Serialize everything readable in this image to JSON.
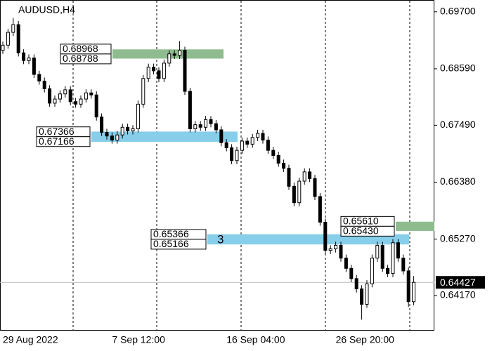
{
  "chart_data": {
    "type": "candlestick",
    "title": "AUDUSD,H4",
    "categories": [
      "29 Aug 2022",
      null,
      null,
      null,
      null,
      null,
      null,
      null,
      null,
      null,
      null,
      null,
      null,
      null,
      null,
      null,
      null,
      null,
      null,
      null,
      null,
      "7 Sep 12:00",
      null,
      null,
      null,
      null,
      null,
      null,
      null,
      null,
      null,
      null,
      null,
      null,
      null,
      null,
      null,
      null,
      null,
      null,
      null,
      null,
      null,
      "16 Sep 04:00",
      null,
      null,
      null,
      null,
      null,
      null,
      null,
      null,
      null,
      null,
      null,
      null,
      null,
      null,
      null,
      null,
      null,
      null,
      null,
      null,
      "26 Sep 20:00",
      null,
      null,
      null,
      null,
      null,
      null,
      null,
      null,
      null,
      null,
      null,
      null,
      null,
      null,
      null
    ],
    "open": [
      0.6895,
      0.6905,
      0.693,
      0.6945,
      0.689,
      0.6875,
      0.688,
      0.6848,
      0.6835,
      0.682,
      0.6792,
      0.68,
      0.681,
      0.6818,
      0.6795,
      0.679,
      0.68,
      0.6812,
      0.6808,
      0.6765,
      0.6735,
      0.6728,
      0.672,
      0.673,
      0.6745,
      0.6738,
      0.6742,
      0.679,
      0.684,
      0.6862,
      0.6855,
      0.684,
      0.687,
      0.6888,
      0.6885,
      0.6895,
      0.6815,
      0.6742,
      0.675,
      0.6745,
      0.676,
      0.6752,
      0.674,
      0.6715,
      0.6705,
      0.668,
      0.67,
      0.6718,
      0.6712,
      0.6725,
      0.6733,
      0.672,
      0.67,
      0.669,
      0.6675,
      0.6665,
      0.663,
      0.6598,
      0.664,
      0.6658,
      0.6645,
      0.661,
      0.656,
      0.6505,
      0.6508,
      0.6515,
      0.649,
      0.647,
      0.645,
      0.643,
      0.64,
      0.644,
      0.649,
      0.6515,
      0.647,
      0.646,
      0.652,
      0.649,
      0.6465,
      0.6405
    ],
    "high": [
      0.6912,
      0.6937,
      0.6958,
      0.6952,
      0.6897,
      0.6887,
      0.6887,
      0.6855,
      0.6842,
      0.6827,
      0.6807,
      0.6817,
      0.6825,
      0.6825,
      0.6802,
      0.6807,
      0.6819,
      0.6819,
      0.6815,
      0.6772,
      0.6742,
      0.6735,
      0.6737,
      0.6752,
      0.6752,
      0.6749,
      0.6797,
      0.6847,
      0.6869,
      0.6869,
      0.6862,
      0.6877,
      0.6895,
      0.6895,
      0.6913,
      0.6902,
      0.6822,
      0.6757,
      0.6757,
      0.6767,
      0.6767,
      0.6759,
      0.6747,
      0.6722,
      0.6712,
      0.6707,
      0.6725,
      0.6725,
      0.6732,
      0.674,
      0.674,
      0.6727,
      0.6707,
      0.6697,
      0.6682,
      0.6672,
      0.6637,
      0.6647,
      0.6665,
      0.6665,
      0.6652,
      0.6617,
      0.6567,
      0.6515,
      0.6522,
      0.6522,
      0.6497,
      0.6477,
      0.6457,
      0.6437,
      0.6447,
      0.6497,
      0.6522,
      0.6522,
      0.6477,
      0.6527,
      0.6527,
      0.6497,
      0.6472,
      0.6455
    ],
    "low": [
      0.6888,
      0.6898,
      0.6923,
      0.6883,
      0.6868,
      0.6868,
      0.6841,
      0.6828,
      0.6813,
      0.6785,
      0.6785,
      0.6793,
      0.6803,
      0.6788,
      0.6783,
      0.6783,
      0.6793,
      0.6801,
      0.6758,
      0.6728,
      0.6721,
      0.6713,
      0.6713,
      0.6723,
      0.6731,
      0.6731,
      0.6735,
      0.6783,
      0.6833,
      0.6848,
      0.6833,
      0.6833,
      0.6863,
      0.6878,
      0.6878,
      0.6808,
      0.6735,
      0.6735,
      0.6738,
      0.6738,
      0.6745,
      0.6733,
      0.6708,
      0.6698,
      0.6673,
      0.6673,
      0.6693,
      0.6705,
      0.6705,
      0.6718,
      0.6713,
      0.6693,
      0.6683,
      0.6668,
      0.6658,
      0.6623,
      0.6591,
      0.6591,
      0.6633,
      0.6638,
      0.6603,
      0.6553,
      0.6498,
      0.6498,
      0.6501,
      0.6483,
      0.6463,
      0.6443,
      0.6423,
      0.637,
      0.6393,
      0.6433,
      0.6483,
      0.6463,
      0.6453,
      0.6453,
      0.6483,
      0.6458,
      0.6395,
      0.6398
    ],
    "close": [
      0.6905,
      0.693,
      0.6945,
      0.689,
      0.6875,
      0.688,
      0.6848,
      0.6835,
      0.682,
      0.6792,
      0.68,
      0.681,
      0.6818,
      0.6795,
      0.679,
      0.68,
      0.6812,
      0.6808,
      0.6765,
      0.6735,
      0.6728,
      0.672,
      0.673,
      0.6745,
      0.6738,
      0.6742,
      0.679,
      0.684,
      0.6862,
      0.6855,
      0.684,
      0.687,
      0.6888,
      0.6885,
      0.6895,
      0.6815,
      0.6742,
      0.675,
      0.6745,
      0.676,
      0.6752,
      0.674,
      0.6715,
      0.6705,
      0.668,
      0.67,
      0.6718,
      0.6712,
      0.6725,
      0.6733,
      0.672,
      0.67,
      0.669,
      0.6675,
      0.6665,
      0.663,
      0.6598,
      0.664,
      0.6658,
      0.6645,
      0.661,
      0.656,
      0.6505,
      0.6508,
      0.6515,
      0.649,
      0.647,
      0.645,
      0.643,
      0.64,
      0.644,
      0.649,
      0.6515,
      0.647,
      0.646,
      0.652,
      0.649,
      0.6465,
      0.6405,
      0.64427
    ],
    "up_color": "#ffffff",
    "down_color": "#000000",
    "wick_color": "#000000",
    "ylim": [
      0.635,
      0.6993
    ],
    "yticks": [
      {
        "value": 0.697,
        "label": "0.69700"
      },
      {
        "value": 0.6859,
        "label": "0.68590"
      },
      {
        "value": 0.6749,
        "label": "0.67490"
      },
      {
        "value": 0.6638,
        "label": "0.66380"
      },
      {
        "value": 0.6527,
        "label": "0.65270"
      },
      {
        "value": 0.6417,
        "label": "0.64170"
      }
    ],
    "grid": false,
    "last_price": {
      "value": 0.64427,
      "label": "0.64427"
    },
    "zones": [
      {
        "top": {
          "value": 0.68968,
          "label": "0.68968"
        },
        "bottom": {
          "value": 0.68788,
          "label": "0.68788"
        },
        "color": "#8fbc8f"
      },
      {
        "top": {
          "value": 0.67366,
          "label": "0.67366"
        },
        "bottom": {
          "value": 0.67166,
          "label": "0.67166"
        },
        "color": "#87ceeb"
      },
      {
        "top": {
          "value": 0.65366,
          "label": "0.65366"
        },
        "bottom": {
          "value": 0.65166,
          "label": "0.65166"
        },
        "color": "#87ceeb",
        "text": "3"
      },
      {
        "top": {
          "value": 0.6561,
          "label": "0.65610"
        },
        "bottom": {
          "value": 0.6543,
          "label": "0.65430"
        },
        "color": "#8fbc8f"
      }
    ]
  }
}
